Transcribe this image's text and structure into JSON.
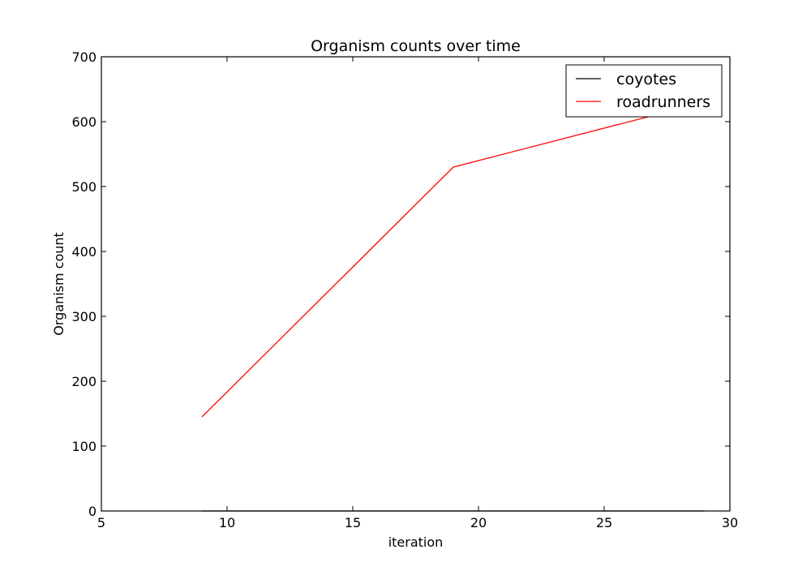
{
  "chart_data": {
    "type": "line",
    "title": "Organism counts over time",
    "xlabel": "iteration",
    "ylabel": "Organism count",
    "xlim": [
      5,
      30
    ],
    "ylim": [
      0,
      700
    ],
    "xticks": [
      5,
      10,
      15,
      20,
      25,
      30
    ],
    "yticks": [
      0,
      100,
      200,
      300,
      400,
      500,
      600,
      700
    ],
    "grid": false,
    "legend_position": "top-right",
    "x": [
      9,
      19,
      29
    ],
    "series": [
      {
        "name": "coyotes",
        "color": "#000000",
        "values": [
          0,
          0,
          0
        ]
      },
      {
        "name": "roadrunners",
        "color": "#ff0000",
        "values": [
          145,
          530,
          630
        ]
      }
    ]
  }
}
